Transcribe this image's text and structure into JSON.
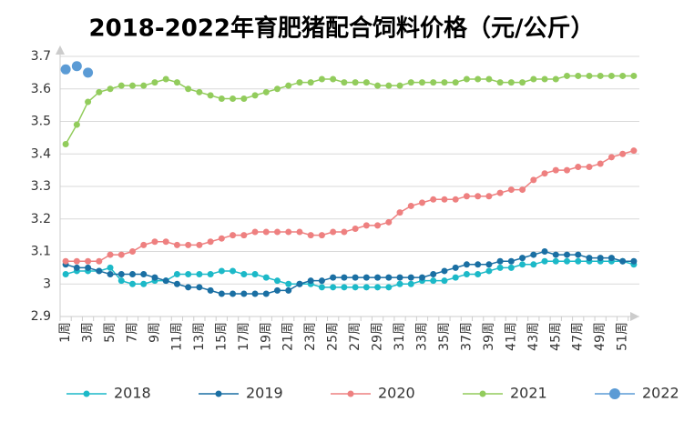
{
  "chart_data": {
    "type": "line",
    "title": "2018-2022年育肥猪配合饲料价格（元/公斤）",
    "categories": [
      "1周",
      null,
      "3周",
      null,
      "5周",
      null,
      "7周",
      null,
      "9周",
      null,
      "11周",
      null,
      "13周",
      null,
      "15周",
      null,
      "17周",
      null,
      "19周",
      null,
      "21周",
      null,
      "23周",
      null,
      "25周",
      null,
      "27周",
      null,
      "29周",
      null,
      "31周",
      null,
      "33周",
      null,
      "35周",
      null,
      "37周",
      null,
      "39周",
      null,
      "41周",
      null,
      "43周",
      null,
      "45周",
      null,
      "47周",
      null,
      "49周",
      null,
      "51周",
      null
    ],
    "ylim": [
      2.9,
      3.7
    ],
    "yticks": [
      2.9,
      3,
      3.1,
      3.2,
      3.3,
      3.4,
      3.5,
      3.6,
      3.7
    ],
    "grid": true,
    "legend": "bottom",
    "series": [
      {
        "name": "2018",
        "color": "#1cb9c8",
        "values": [
          3.03,
          3.04,
          3.04,
          3.04,
          3.05,
          3.01,
          3.0,
          3.0,
          3.01,
          3.01,
          3.03,
          3.03,
          3.03,
          3.03,
          3.04,
          3.04,
          3.03,
          3.03,
          3.02,
          3.01,
          3.0,
          3.0,
          3.0,
          2.99,
          2.99,
          2.99,
          2.99,
          2.99,
          2.99,
          2.99,
          3.0,
          3.0,
          3.01,
          3.01,
          3.01,
          3.02,
          3.03,
          3.03,
          3.04,
          3.05,
          3.05,
          3.06,
          3.06,
          3.07,
          3.07,
          3.07,
          3.07,
          3.07,
          3.07,
          3.07,
          3.07,
          3.06
        ]
      },
      {
        "name": "2019",
        "color": "#1a6fa3",
        "values": [
          3.06,
          3.05,
          3.05,
          3.04,
          3.03,
          3.03,
          3.03,
          3.03,
          3.02,
          3.01,
          3.0,
          2.99,
          2.99,
          2.98,
          2.97,
          2.97,
          2.97,
          2.97,
          2.97,
          2.98,
          2.98,
          3.0,
          3.01,
          3.01,
          3.02,
          3.02,
          3.02,
          3.02,
          3.02,
          3.02,
          3.02,
          3.02,
          3.02,
          3.03,
          3.04,
          3.05,
          3.06,
          3.06,
          3.06,
          3.07,
          3.07,
          3.08,
          3.09,
          3.1,
          3.09,
          3.09,
          3.09,
          3.08,
          3.08,
          3.08,
          3.07,
          3.07
        ]
      },
      {
        "name": "2020",
        "color": "#ee8080",
        "values": [
          3.07,
          3.07,
          3.07,
          3.07,
          3.09,
          3.09,
          3.1,
          3.12,
          3.13,
          3.13,
          3.12,
          3.12,
          3.12,
          3.13,
          3.14,
          3.15,
          3.15,
          3.16,
          3.16,
          3.16,
          3.16,
          3.16,
          3.15,
          3.15,
          3.16,
          3.16,
          3.17,
          3.18,
          3.18,
          3.19,
          3.22,
          3.24,
          3.25,
          3.26,
          3.26,
          3.26,
          3.27,
          3.27,
          3.27,
          3.28,
          3.29,
          3.29,
          3.32,
          3.34,
          3.35,
          3.35,
          3.36,
          3.36,
          3.37,
          3.39,
          3.4,
          3.41
        ]
      },
      {
        "name": "2021",
        "color": "#92cc5c",
        "values": [
          3.43,
          3.49,
          3.56,
          3.59,
          3.6,
          3.61,
          3.61,
          3.61,
          3.62,
          3.63,
          3.62,
          3.6,
          3.59,
          3.58,
          3.57,
          3.57,
          3.57,
          3.58,
          3.59,
          3.6,
          3.61,
          3.62,
          3.62,
          3.63,
          3.63,
          3.62,
          3.62,
          3.62,
          3.61,
          3.61,
          3.61,
          3.62,
          3.62,
          3.62,
          3.62,
          3.62,
          3.63,
          3.63,
          3.63,
          3.62,
          3.62,
          3.62,
          3.63,
          3.63,
          3.63,
          3.64,
          3.64,
          3.64,
          3.64,
          3.64,
          3.64,
          3.64
        ]
      },
      {
        "name": "2022",
        "color": "#5b9bd5",
        "values": [
          3.66,
          3.67,
          3.65,
          null,
          null,
          null,
          null,
          null,
          null,
          null,
          null,
          null,
          null,
          null,
          null,
          null,
          null,
          null,
          null,
          null,
          null,
          null,
          null,
          null,
          null,
          null,
          null,
          null,
          null,
          null,
          null,
          null,
          null,
          null,
          null,
          null,
          null,
          null,
          null,
          null,
          null,
          null,
          null,
          null,
          null,
          null,
          null,
          null,
          null,
          null,
          null,
          null
        ]
      }
    ]
  }
}
